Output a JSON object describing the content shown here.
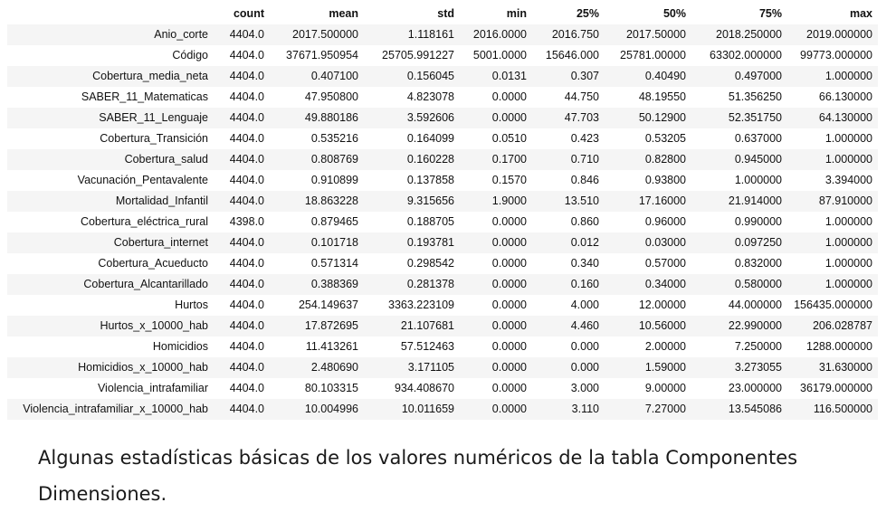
{
  "table": {
    "columns": [
      "count",
      "mean",
      "std",
      "min",
      "25%",
      "50%",
      "75%",
      "max"
    ],
    "rows": [
      {
        "name": "Anio_corte",
        "values": [
          "4404.0",
          "2017.500000",
          "1.118161",
          "2016.0000",
          "2016.750",
          "2017.50000",
          "2018.250000",
          "2019.000000"
        ]
      },
      {
        "name": "Código",
        "values": [
          "4404.0",
          "37671.950954",
          "25705.991227",
          "5001.0000",
          "15646.000",
          "25781.00000",
          "63302.000000",
          "99773.000000"
        ]
      },
      {
        "name": "Cobertura_media_neta",
        "values": [
          "4404.0",
          "0.407100",
          "0.156045",
          "0.0131",
          "0.307",
          "0.40490",
          "0.497000",
          "1.000000"
        ]
      },
      {
        "name": "SABER_11_Matematicas",
        "values": [
          "4404.0",
          "47.950800",
          "4.823078",
          "0.0000",
          "44.750",
          "48.19550",
          "51.356250",
          "66.130000"
        ]
      },
      {
        "name": "SABER_11_Lenguaje",
        "values": [
          "4404.0",
          "49.880186",
          "3.592606",
          "0.0000",
          "47.703",
          "50.12900",
          "52.351750",
          "64.130000"
        ]
      },
      {
        "name": "Cobertura_Transición",
        "values": [
          "4404.0",
          "0.535216",
          "0.164099",
          "0.0510",
          "0.423",
          "0.53205",
          "0.637000",
          "1.000000"
        ]
      },
      {
        "name": "Cobertura_salud",
        "values": [
          "4404.0",
          "0.808769",
          "0.160228",
          "0.1700",
          "0.710",
          "0.82800",
          "0.945000",
          "1.000000"
        ]
      },
      {
        "name": "Vacunación_Pentavalente",
        "values": [
          "4404.0",
          "0.910899",
          "0.137858",
          "0.1570",
          "0.846",
          "0.93800",
          "1.000000",
          "3.394000"
        ]
      },
      {
        "name": "Mortalidad_Infantil",
        "values": [
          "4404.0",
          "18.863228",
          "9.315656",
          "1.9000",
          "13.510",
          "17.16000",
          "21.914000",
          "87.910000"
        ]
      },
      {
        "name": "Cobertura_eléctrica_rural",
        "values": [
          "4398.0",
          "0.879465",
          "0.188705",
          "0.0000",
          "0.860",
          "0.96000",
          "0.990000",
          "1.000000"
        ]
      },
      {
        "name": "Cobertura_internet",
        "values": [
          "4404.0",
          "0.101718",
          "0.193781",
          "0.0000",
          "0.012",
          "0.03000",
          "0.097250",
          "1.000000"
        ]
      },
      {
        "name": "Cobertura_Acueducto",
        "values": [
          "4404.0",
          "0.571314",
          "0.298542",
          "0.0000",
          "0.340",
          "0.57000",
          "0.832000",
          "1.000000"
        ]
      },
      {
        "name": "Cobertura_Alcantarillado",
        "values": [
          "4404.0",
          "0.388369",
          "0.281378",
          "0.0000",
          "0.160",
          "0.34000",
          "0.580000",
          "1.000000"
        ]
      },
      {
        "name": "Hurtos",
        "values": [
          "4404.0",
          "254.149637",
          "3363.223109",
          "0.0000",
          "4.000",
          "12.00000",
          "44.000000",
          "156435.000000"
        ]
      },
      {
        "name": "Hurtos_x_10000_hab",
        "values": [
          "4404.0",
          "17.872695",
          "21.107681",
          "0.0000",
          "4.460",
          "10.56000",
          "22.990000",
          "206.028787"
        ]
      },
      {
        "name": "Homicidios",
        "values": [
          "4404.0",
          "11.413261",
          "57.512463",
          "0.0000",
          "0.000",
          "2.00000",
          "7.250000",
          "1288.000000"
        ]
      },
      {
        "name": "Homicidios_x_10000_hab",
        "values": [
          "4404.0",
          "2.480690",
          "3.171105",
          "0.0000",
          "0.000",
          "1.59000",
          "3.273055",
          "31.630000"
        ]
      },
      {
        "name": "Violencia_intrafamiliar",
        "values": [
          "4404.0",
          "80.103315",
          "934.408670",
          "0.0000",
          "3.000",
          "9.00000",
          "23.000000",
          "36179.000000"
        ]
      },
      {
        "name": "Violencia_intrafamiliar_x_10000_hab",
        "values": [
          "4404.0",
          "10.004996",
          "10.011659",
          "0.0000",
          "3.110",
          "7.27000",
          "13.545086",
          "116.500000"
        ]
      }
    ]
  },
  "caption": "Algunas estadísticas básicas de los valores numéricos de la tabla Componentes Dimensiones."
}
